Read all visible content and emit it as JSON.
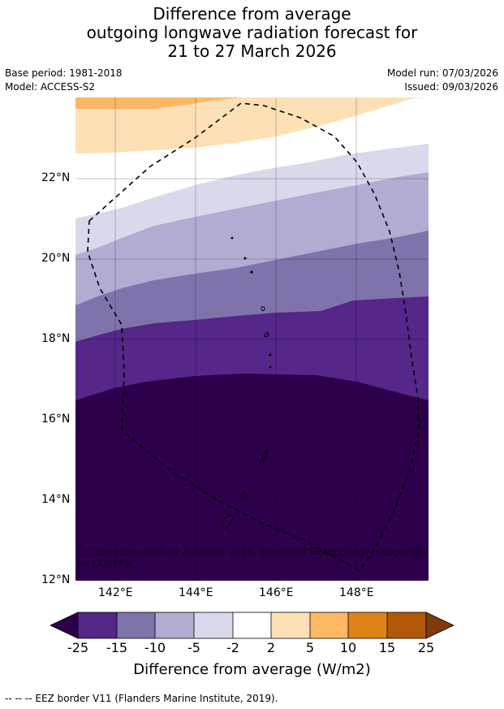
{
  "title": {
    "line1": "Difference from average",
    "line2": "outgoing longwave radiation forecast for",
    "line3": "21 to 27 March 2026"
  },
  "meta": {
    "base_period": "Base period: 1981-2018",
    "model": "Model: ACCESS-S2",
    "model_run": "Model run: 07/03/2026",
    "issued": "Issued: 09/03/2026"
  },
  "map": {
    "lat_labels": [
      "22°N",
      "20°N",
      "18°N",
      "16°N",
      "14°N",
      "12°N"
    ],
    "lon_labels": [
      "142°E",
      "144°E",
      "146°E",
      "148°E"
    ],
    "copyright_line1": "© Commonwealth of Australia 2026, Bureau of Meteorology, supported",
    "copyright_line2": "by COSPPac"
  },
  "colorbar": {
    "title": "Difference from average (W/m2)",
    "ticks": [
      "-25",
      "-15",
      "-10",
      "-5",
      "-2",
      "2",
      "5",
      "10",
      "15",
      "25"
    ],
    "colors": {
      "lt_-25": "#2d004b",
      "-25_-15": "#542788",
      "-15_-10": "#8073ac",
      "-10_-5": "#b2abd2",
      "-5_-2": "#d8daeb",
      "-2_2": "#ffffff",
      "2_5": "#fee0b6",
      "5_10": "#fdb863",
      "10_15": "#e08214",
      "15_25": "#b35806",
      "gt_25": "#7f3b08"
    }
  },
  "footer": "--  --  -- EEZ border V11 (Flanders Marine Institute, 2019)."
}
